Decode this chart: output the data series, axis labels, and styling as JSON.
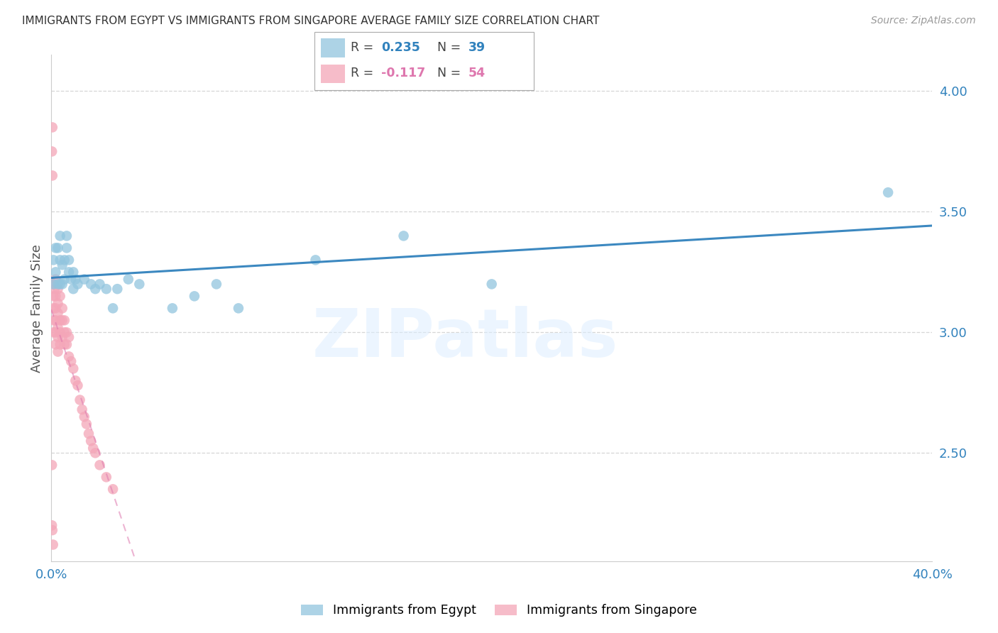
{
  "title": "IMMIGRANTS FROM EGYPT VS IMMIGRANTS FROM SINGAPORE AVERAGE FAMILY SIZE CORRELATION CHART",
  "source": "Source: ZipAtlas.com",
  "ylabel": "Average Family Size",
  "yticks_right": [
    2.5,
    3.0,
    3.5,
    4.0
  ],
  "xlim": [
    0.0,
    0.4
  ],
  "ylim": [
    2.05,
    4.15
  ],
  "egypt_color": "#92c5de",
  "singapore_color": "#f4a6b8",
  "trend_egypt_color": "#3182bd",
  "trend_singapore_color": "#de77ae",
  "watermark_text": "ZIPatlas",
  "egypt_R": 0.235,
  "egypt_N": 39,
  "singapore_R": -0.117,
  "singapore_N": 54,
  "egypt_x": [
    0.001,
    0.001,
    0.002,
    0.002,
    0.003,
    0.003,
    0.004,
    0.004,
    0.004,
    0.005,
    0.005,
    0.006,
    0.006,
    0.007,
    0.007,
    0.008,
    0.008,
    0.009,
    0.01,
    0.01,
    0.011,
    0.012,
    0.015,
    0.018,
    0.02,
    0.022,
    0.025,
    0.028,
    0.03,
    0.035,
    0.04,
    0.055,
    0.065,
    0.075,
    0.085,
    0.12,
    0.16,
    0.2,
    0.38
  ],
  "egypt_y": [
    3.2,
    3.3,
    3.25,
    3.35,
    3.2,
    3.35,
    3.2,
    3.3,
    3.4,
    3.2,
    3.28,
    3.22,
    3.3,
    3.35,
    3.4,
    3.25,
    3.3,
    3.22,
    3.25,
    3.18,
    3.22,
    3.2,
    3.22,
    3.2,
    3.18,
    3.2,
    3.18,
    3.1,
    3.18,
    3.22,
    3.2,
    3.1,
    3.15,
    3.2,
    3.1,
    3.3,
    3.4,
    3.2,
    3.58
  ],
  "singapore_x": [
    0.0003,
    0.0005,
    0.0005,
    0.001,
    0.001,
    0.001,
    0.001,
    0.001,
    0.0015,
    0.002,
    0.002,
    0.002,
    0.002,
    0.002,
    0.002,
    0.003,
    0.003,
    0.003,
    0.003,
    0.003,
    0.003,
    0.004,
    0.004,
    0.004,
    0.004,
    0.005,
    0.005,
    0.005,
    0.006,
    0.006,
    0.006,
    0.007,
    0.007,
    0.008,
    0.008,
    0.009,
    0.01,
    0.011,
    0.012,
    0.013,
    0.014,
    0.015,
    0.016,
    0.017,
    0.018,
    0.019,
    0.02,
    0.022,
    0.025,
    0.028,
    0.0003,
    0.0003,
    0.0005,
    0.0008
  ],
  "singapore_y": [
    3.75,
    3.65,
    3.85,
    3.2,
    3.15,
    3.1,
    3.05,
    3.0,
    3.18,
    3.22,
    3.15,
    3.1,
    3.05,
    3.0,
    2.95,
    3.18,
    3.12,
    3.08,
    3.02,
    2.98,
    2.92,
    3.15,
    3.05,
    3.0,
    2.95,
    3.1,
    3.05,
    2.98,
    3.05,
    3.0,
    2.95,
    3.0,
    2.95,
    2.98,
    2.9,
    2.88,
    2.85,
    2.8,
    2.78,
    2.72,
    2.68,
    2.65,
    2.62,
    2.58,
    2.55,
    2.52,
    2.5,
    2.45,
    2.4,
    2.35,
    2.45,
    2.2,
    2.18,
    2.12
  ]
}
